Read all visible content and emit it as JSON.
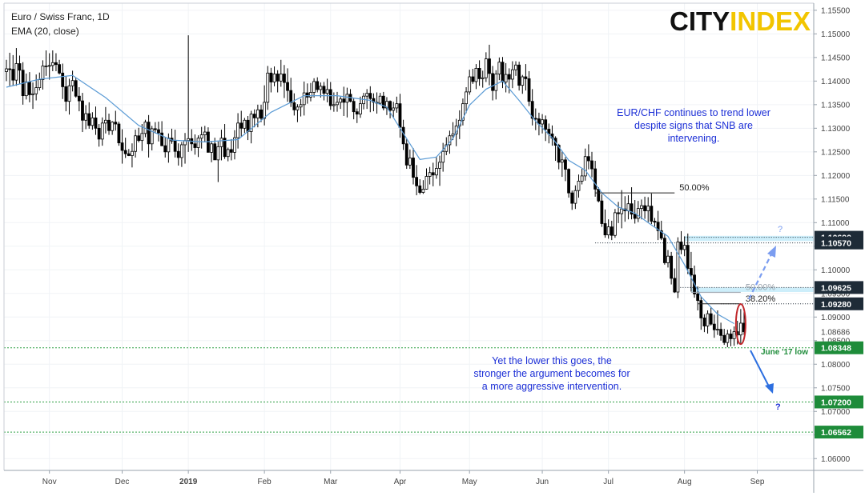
{
  "chart_data": {
    "type": "candlestick",
    "title": "Euro / Swiss Franc, 1D",
    "indicator": "EMA (20, close)",
    "logo": "CITYINDEX",
    "colors": {
      "candle": "#000000",
      "ema": "#5b9bd5",
      "support_line": "#2ea043",
      "level_tag": "#1e2b37",
      "support_tag": "#1e8c3a",
      "annotation": "#1c2fd6",
      "highlight_band": "#cdeefa",
      "circle": "#c0262a",
      "arrow_up": "#7b9df0",
      "arrow_down": "#2d6fe0"
    },
    "y_axis": {
      "ylim": [
        1.0575,
        1.1565
      ],
      "ticks": [
        "1.15500",
        "1.15000",
        "1.14500",
        "1.14000",
        "1.13500",
        "1.13000",
        "1.12500",
        "1.12000",
        "1.11500",
        "1.11000",
        "1.10500",
        "1.10000",
        "1.09500",
        "1.09000",
        "1.08500",
        "1.08000",
        "1.07500",
        "1.07000",
        "1.06500",
        "1.06000"
      ],
      "current_price_label": "1.08686",
      "current_price": 1.08686
    },
    "x_axis": {
      "ticks": [
        {
          "label": "Nov",
          "index": 13
        },
        {
          "label": "Dec",
          "index": 35
        },
        {
          "label": "2019",
          "index": 55
        },
        {
          "label": "Feb",
          "index": 78
        },
        {
          "label": "Mar",
          "index": 98
        },
        {
          "label": "Apr",
          "index": 119
        },
        {
          "label": "May",
          "index": 140
        },
        {
          "label": "Jun",
          "index": 162
        },
        {
          "label": "Jul",
          "index": 182
        },
        {
          "label": "Aug",
          "index": 205
        },
        {
          "label": "Sep",
          "index": 227
        }
      ]
    },
    "series_ohlc": "1.1420,1.1445,1.1400,1.1426|1.1426,1.1460,1.1390,1.1425|1.1425,1.1455,1.1390,1.1402|1.1402,1.1470,1.1390,1.1437|1.1437,1.1454,1.1393,1.1423|1.1423,1.1440,1.1350,1.1369|1.1369,1.1416,1.1361,1.1398|1.1398,1.1419,1.1355,1.1371|1.1371,1.1397,1.1341,1.1373|1.1373,1.1414,1.1359,1.1386|1.1386,1.1418,1.1380,1.1403|1.1403,1.1444,1.1382,1.1432|1.1432,1.1465,1.1411,1.1432|1.1432,1.1459,1.1403,1.1433|1.1433,1.1465,1.1421,1.1439|1.1439,1.1459,1.1421,1.1435|1.1435,1.1445,1.1414,1.1417|1.1417,1.1437,1.1362,1.1388|1.1388,1.1410,1.1336,1.1357|1.1357,1.1405,1.1329,1.1390|1.1390,1.1422,1.1378,1.1401|1.1401,1.1407,1.1365,1.1368|1.1368,1.1387,1.1336,1.1358|1.1358,1.1375,1.1292,1.1317|1.1317,1.1349,1.1298,1.1331|1.1331,1.1355,1.1299,1.1306|1.1306,1.1334,1.1297,1.1322|1.1322,1.1346,1.1286,1.1300|1.1300,1.1309,1.1261,1.1277|1.1277,1.1323,1.1263,1.1311|1.1311,1.1345,1.1289,1.1317|1.1317,1.1331,1.1286,1.1295|1.1295,1.1315,1.1286,1.1313|1.1313,1.1337,1.1295,1.1309|1.1309,1.1314,1.1263,1.1269|1.1269,1.1298,1.1225,1.1253|1.1253,1.1280,1.1237,1.1246|1.1246,1.1256,1.1241,1.1242|1.1242,1.1268,1.1217,1.1251|1.1251,1.1297,1.1238,1.1284|1.1284,1.1301,1.1270,1.1274|1.1274,1.1309,1.1252,1.1289|1.1289,1.1318,1.1281,1.1313|1.1313,1.1328,1.1238,1.1267|1.1267,1.1305,1.1253,1.1299|1.1299,1.1313,1.1289,1.1297|1.1297,1.1314,1.1272,1.1290|1.1290,1.1315,1.1262,1.1263|1.1263,1.1281,1.1238,1.1250|1.1250,1.1289,1.1227,1.1279|1.1279,1.1299,1.1267,1.1273|1.1273,1.1297,1.1238,1.1251|1.1251,1.1268,1.1221,1.1238|1.1238,1.1271,1.1218,1.1265|1.1265,1.1290,1.1225,1.1274|1.1274,1.1497,1.1250,1.1278|1.1278,1.1298,1.1252,1.1267|1.1267,1.1287,1.1244,1.1259|1.1259,1.1285,1.1239,1.1279|1.1279,1.1303,1.1257,1.1286|1.1286,1.1305,1.1270,1.1292|1.1292,1.1302,1.1249,1.1249|1.1249,1.1273,1.1228,1.1267|1.1267,1.1280,1.1233,1.1233|1.1233,1.1272,1.1186,1.1261|1.1261,1.1297,1.1232,1.1279|1.1279,1.1309,1.1235,1.1240|1.1240,1.1259,1.1230,1.1255|1.1255,1.1277,1.1232,1.1249|1.1249,1.1296,1.1234,1.1280|1.1280,1.1332,1.1257,1.1311|1.1311,1.1337,1.1282,1.1300|1.1300,1.1322,1.1290,1.1317|1.1317,1.1326,1.1275,1.1293|1.1293,1.1337,1.1268,1.1330|1.1330,1.1340,1.1302,1.1322|1.1322,1.1350,1.1302,1.1339|1.1339,1.1350,1.1313,1.1321|1.1321,1.1391,1.1306,1.1355|1.1355,1.1432,1.1339,1.1417|1.1417,1.1428,1.1376,1.1398|1.1398,1.1431,1.1389,1.1415|1.1415,1.1423,1.1376,1.1400|1.1400,1.1445,1.1388,1.1415|1.1415,1.1434,1.1364,1.1397|1.1397,1.1427,1.1356,1.1380|1.1380,1.1407,1.1345,1.1354|1.1354,1.1374,1.1327,1.1339|1.1339,1.1351,1.1313,1.1345|1.1345,1.1362,1.1325,1.1350|1.1350,1.1399,1.1327,1.1375|1.1375,1.1395,1.1352,1.1366|1.1366,1.1396,1.1357,1.1376|1.1376,1.1406,1.1365,1.1399|1.1399,1.1408,1.1376,1.1382|1.1382,1.1397,1.1365,1.1389|1.1389,1.1398,1.1359,1.1374|1.1374,1.1405,1.1355,1.1382|1.1382,1.1398,1.1339,1.1348|1.1348,1.1376,1.1335,1.1350|1.1350,1.1377,1.1335,1.1355|1.1355,1.1367,1.1341,1.1362|1.1362,1.1388,1.1326,1.1355|1.1355,1.1386,1.1323,1.1372|1.1372,1.1383,1.1355,1.1357|1.1357,1.1363,1.1319,1.1335|1.1335,1.1342,1.1311,1.1330|1.1330,1.1367,1.1322,1.1352|1.1352,1.1375,1.1340,1.1368|1.1368,1.1383,1.1341,1.1374|1.1374,1.1389,1.1334,1.1363|1.1363,1.1374,1.1336,1.1355|1.1355,1.1376,1.1331,1.1353|1.1353,1.1375,1.1350,1.1368|1.1368,1.1377,1.1338,1.1343|1.1343,1.1366,1.1328,1.1357|1.1357,1.1359,1.1321,1.1338|1.1338,1.1356,1.1322,1.1343|1.1343,1.1367,1.1333,1.1352|1.1352,1.1373,1.1280,1.1302|1.1302,1.1318,1.1254,1.1267|1.1267,1.1277,1.1214,1.1222|1.1222,1.1255,1.1214,1.1237|1.1237,1.1258,1.1181,1.1196|1.1196,1.1222,1.1158,1.1178|1.1178,1.1192,1.1160,1.1164|1.1164,1.1190,1.1161,1.1171|1.1171,1.1215,1.1170,1.1198|1.1198,1.1218,1.1181,1.1206|1.1206,1.1227,1.1177,1.1201|1.1201,1.1240,1.1193,1.1215|1.1215,1.1242,1.1178,1.1228|1.1228,1.1269,1.1208,1.1251|1.1251,1.1281,1.1243,1.1265|1.1265,1.1295,1.1246,1.1284|1.1284,1.1313,1.1275,1.1288|1.1288,1.1320,1.1262,1.1305|1.1305,1.1338,1.1277,1.1317|1.1317,1.1363,1.1306,1.1352|1.1352,1.1387,1.1332,1.1377|1.1377,1.1424,1.1371,1.1409|1.1409,1.1426,1.1394,1.1399|1.1399,1.1436,1.1383,1.1427|1.1427,1.1444,1.1390,1.1405|1.1405,1.1422,1.1386,1.1407|1.1407,1.1461,1.1398,1.1447|1.1447,1.1477,1.1391,1.1416|1.1416,1.1432,1.1359,1.1380|1.1380,1.1423,1.1361,1.1415|1.1415,1.1450,1.1402,1.1440|1.1440,1.1451,1.1385,1.1398|1.1398,1.1438,1.1376,1.1414|1.1414,1.1427,1.1374,1.1404|1.1404,1.1442,1.1385,1.1424|1.1424,1.1442,1.1411,1.1434|1.1434,1.1441,1.1380,1.1391|1.1391,1.1413,1.1373,1.1409|1.1409,1.1436,1.1380,1.1405|1.1405,1.1421,1.1347,1.1357|1.1357,1.1383,1.1306,1.1321|1.1321,1.1342,1.1296,1.1320|1.1320,1.1333,1.1285,1.1309|1.1309,1.1330,1.1289,1.1318|1.1318,1.1327,1.1273,1.1298|1.1298,1.1310,1.1268,1.1288|1.1288,1.1306,1.1263,1.1279|1.1279,1.1283,1.1231,1.1264|1.1264,1.1267,1.1213,1.1228|1.1228,1.1252,1.1197,1.1233|1.1233,1.1239,1.1188,1.1213|1.1213,1.1215,1.1153,1.1163|1.1163,1.1168,1.1127,1.1141|1.1141,1.1179,1.1129,1.1168|1.1168,1.1202,1.1153,1.1188|1.1188,1.1214,1.1181,1.1199|1.1199,1.1257,1.1189,1.1240|1.1240,1.1266,1.1213,1.1231|1.1231,1.1250,1.1196,1.1214|1.1214,1.1231,1.1155,1.1171|1.1171,1.1175,1.1143,1.1146|1.1146,1.1160,1.1091,1.1098|1.1098,1.1128,1.1068,1.1074|1.1074,1.1107,1.1066,1.1091|1.1091,1.1104,1.1063,1.1073|1.1073,1.1129,1.1068,1.1121|1.1121,1.1144,1.1099,1.1119|1.1119,1.1169,1.1088,1.1129|1.1129,1.1156,1.1102,1.1125|1.1125,1.1158,1.1107,1.1140|1.1140,1.1175,1.1107,1.1118|1.1118,1.1148,1.1098,1.1109|1.1109,1.1146,1.1101,1.1130|1.1130,1.1149,1.1107,1.1136|1.1136,1.1155,1.1108,1.1125|1.1125,1.1154,1.1100,1.1135|1.1135,1.1162,1.1097,1.1103|1.1103,1.1110,1.1092,1.1101|1.1101,1.1125,1.1063,1.1083|1.1083,1.1104,1.1063,1.1067|1.1067,1.1077,1.1011,1.1015|1.1015,1.1042,1.1005,1.1029|1.1029,1.1038,1.0969,1.0982|1.0982,1.1003,1.0951,1.0953|1.0953,1.1069,1.0940,1.1059|1.1059,1.1082,1.1033,1.1043|1.1043,1.1071,1.1029,1.1052|1.1052,1.1077,1.0991,1.1003|1.1003,1.1038,1.0954,1.0989|1.0989,1.1009,1.0941,1.0949|1.0949,1.0965,1.0914,1.0935|1.0935,1.0944,1.0873,1.0898|1.0898,1.0906,1.0868,1.0881|1.0881,1.0914,1.0865,1.0907|1.0907,1.0921,1.0882,1.0885|1.0885,1.0905,1.0856,1.0873|1.0873,1.0914,1.0862,1.0874|1.0874,1.0888,1.0850,1.0861|1.0861,1.0875,1.0841,1.0846|1.0846,1.0873,1.0836,1.0864|1.0864,1.0874,1.0838,1.0854|1.0854,1.0880,1.0839,1.0869|1.0869,1.0892,1.0842,1.0862|1.0862,1.0917,1.0843,1.0887|1.0887,1.0912,1.0862,1.0869",
    "ema_fit": [
      {
        "index": 0,
        "value": 1.1387
      },
      {
        "index": 10,
        "value": 1.1404
      },
      {
        "index": 20,
        "value": 1.1412
      },
      {
        "index": 30,
        "value": 1.1365
      },
      {
        "index": 40,
        "value": 1.1306
      },
      {
        "index": 50,
        "value": 1.1275
      },
      {
        "index": 60,
        "value": 1.1271
      },
      {
        "index": 70,
        "value": 1.1276
      },
      {
        "index": 80,
        "value": 1.1334
      },
      {
        "index": 90,
        "value": 1.1369
      },
      {
        "index": 100,
        "value": 1.1369
      },
      {
        "index": 110,
        "value": 1.1359
      },
      {
        "index": 115,
        "value": 1.1345
      },
      {
        "index": 120,
        "value": 1.1289
      },
      {
        "index": 125,
        "value": 1.1234
      },
      {
        "index": 130,
        "value": 1.1239
      },
      {
        "index": 135,
        "value": 1.1278
      },
      {
        "index": 140,
        "value": 1.1349
      },
      {
        "index": 145,
        "value": 1.1383
      },
      {
        "index": 150,
        "value": 1.14
      },
      {
        "index": 155,
        "value": 1.1359
      },
      {
        "index": 160,
        "value": 1.1315
      },
      {
        "index": 165,
        "value": 1.128
      },
      {
        "index": 170,
        "value": 1.1232
      },
      {
        "index": 175,
        "value": 1.1211
      },
      {
        "index": 180,
        "value": 1.1163
      },
      {
        "index": 185,
        "value": 1.1133
      },
      {
        "index": 190,
        "value": 1.112
      },
      {
        "index": 195,
        "value": 1.1095
      },
      {
        "index": 200,
        "value": 1.1071
      },
      {
        "index": 205,
        "value": 1.1011
      },
      {
        "index": 210,
        "value": 1.0943
      },
      {
        "index": 215,
        "value": 1.0906
      },
      {
        "index": 220,
        "value": 1.0886
      }
    ],
    "levels": [
      {
        "label": "1.10690",
        "value": 1.1069,
        "style": "tag"
      },
      {
        "label": "1.10570",
        "value": 1.1057,
        "style": "tag"
      },
      {
        "label": "1.09625",
        "value": 1.09625,
        "style": "tag"
      },
      {
        "label": "1.09280",
        "value": 1.0928,
        "style": "tag"
      },
      {
        "label": "1.08348",
        "value": 1.08348,
        "style": "support"
      },
      {
        "label": "1.07200",
        "value": 1.072,
        "style": "support"
      },
      {
        "label": "1.06562",
        "value": 1.06562,
        "style": "support"
      }
    ],
    "fib_lines": [
      {
        "label": "50.00%",
        "value": 1.1163,
        "from_index": 178,
        "to_index": 202
      },
      {
        "label": "50.00%",
        "value": 1.09525,
        "from_index": 207,
        "to_index": 222
      },
      {
        "label": "38.20%",
        "value": 1.0928,
        "from_index": 209,
        "to_index": 222
      }
    ],
    "annotations": {
      "top_note": [
        "EUR/CHF continues to trend lower",
        "despite signs that SNB are",
        "intervening."
      ],
      "bottom_note": [
        "Yet the lower this goes, the",
        "stronger the argument becomes for",
        "a more aggressive intervention."
      ],
      "june_low": "June '17 low",
      "question_up": "?",
      "question_down": "?"
    }
  }
}
